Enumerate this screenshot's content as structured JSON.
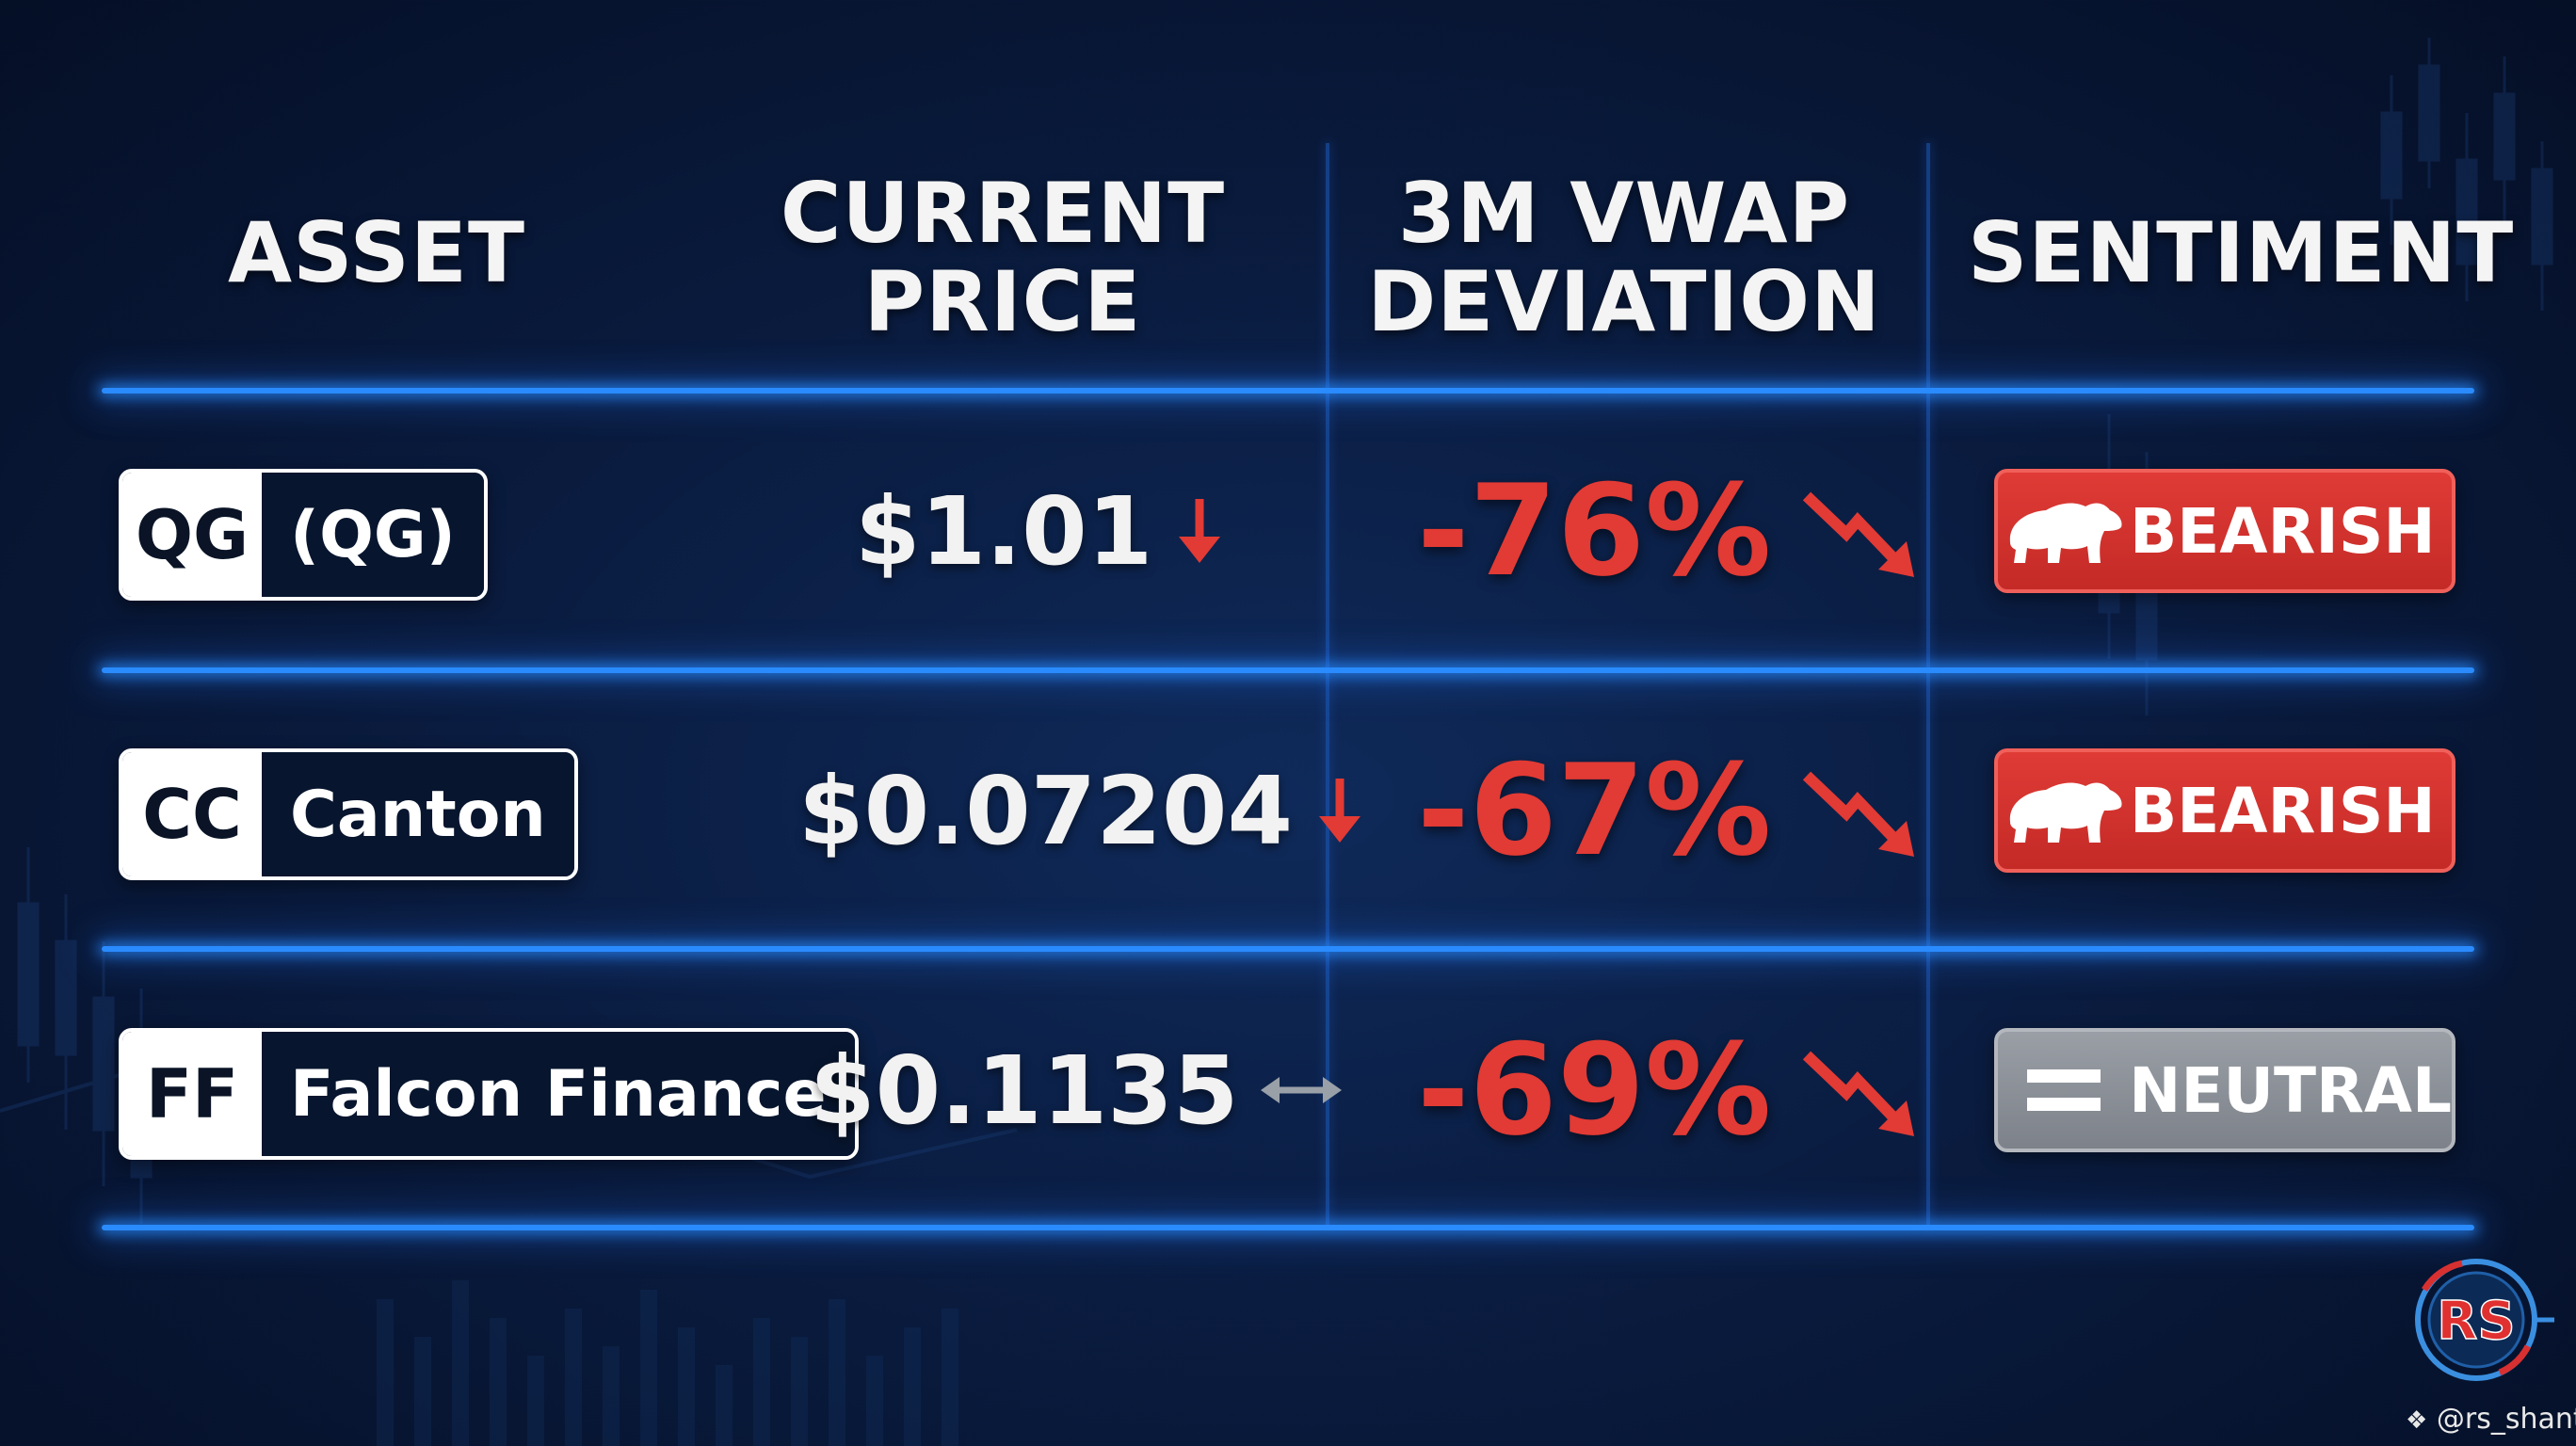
{
  "headers": {
    "asset": "ASSET",
    "price_line1": "CURRENT",
    "price_line2": "PRICE",
    "dev_line1": "3M VWAP",
    "dev_line2": "DEVIATION",
    "sentiment": "SENTIMENT"
  },
  "rows": [
    {
      "ticker": "QG",
      "name": "(QG)",
      "price": "$1.01",
      "price_trend": "down",
      "deviation": "-76%",
      "sentiment": "BEARISH",
      "sentiment_icon": "bear-icon"
    },
    {
      "ticker": "CC",
      "name": "Canton",
      "price": "$0.07204",
      "price_trend": "down",
      "deviation": "-67%",
      "sentiment": "BEARISH",
      "sentiment_icon": "bear-icon"
    },
    {
      "ticker": "FF",
      "name": "Falcon Finance",
      "price": "$0.1135",
      "price_trend": "sideways",
      "deviation": "-69%",
      "sentiment": "NEUTRAL",
      "sentiment_icon": "equals-icon"
    }
  ],
  "watermark": {
    "logo_text": "RS",
    "handle": "@rs_shanto"
  },
  "colors": {
    "background": "#0a1c40",
    "divider": "#2a8bff",
    "negative": "#e23a34",
    "bearish": "#d8332e",
    "neutral": "#8d9198"
  }
}
